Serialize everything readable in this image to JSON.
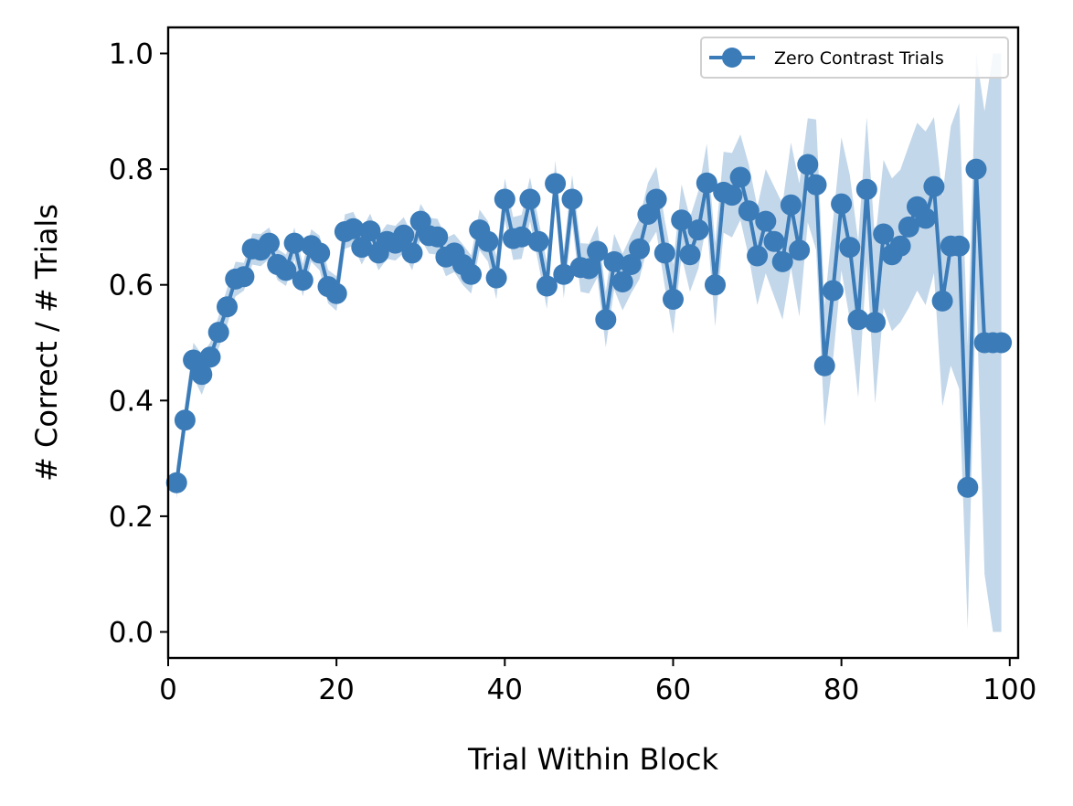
{
  "chart_data": {
    "type": "line",
    "xlabel": "Trial Within Block",
    "ylabel": "# Correct / # Trials",
    "xlim": [
      0,
      101
    ],
    "ylim": [
      -0.045,
      1.045
    ],
    "xticks": [
      0,
      20,
      40,
      60,
      80,
      100
    ],
    "xtick_labels": [
      "0",
      "20",
      "40",
      "60",
      "80",
      "100"
    ],
    "yticks": [
      0.0,
      0.2,
      0.4,
      0.6,
      0.8,
      1.0
    ],
    "ytick_labels": [
      "0.0",
      "0.2",
      "0.4",
      "0.6",
      "0.8",
      "1.0"
    ],
    "grid": false,
    "legend_position": "top-right",
    "colors": {
      "line": "#3a7bb8",
      "band": "#c3d7ea"
    },
    "series": [
      {
        "name": "Zero Contrast Trials",
        "marker": "circle",
        "x": [
          1,
          2,
          3,
          4,
          5,
          6,
          7,
          8,
          9,
          10,
          11,
          12,
          13,
          14,
          15,
          16,
          17,
          18,
          19,
          20,
          21,
          22,
          23,
          24,
          25,
          26,
          27,
          28,
          29,
          30,
          31,
          32,
          33,
          34,
          35,
          36,
          37,
          38,
          39,
          40,
          41,
          42,
          43,
          44,
          45,
          46,
          47,
          48,
          49,
          50,
          51,
          52,
          53,
          54,
          55,
          56,
          57,
          58,
          59,
          60,
          61,
          62,
          63,
          64,
          65,
          66,
          67,
          68,
          69,
          70,
          71,
          72,
          73,
          74,
          75,
          76,
          77,
          78,
          79,
          80,
          81,
          82,
          83,
          84,
          85,
          86,
          87,
          88,
          89,
          90,
          91,
          92,
          93,
          94,
          95,
          96,
          97,
          98,
          99
        ],
        "y": [
          0.258,
          0.366,
          0.47,
          0.445,
          0.475,
          0.518,
          0.562,
          0.61,
          0.614,
          0.662,
          0.66,
          0.672,
          0.635,
          0.625,
          0.672,
          0.608,
          0.668,
          0.655,
          0.597,
          0.585,
          0.692,
          0.697,
          0.665,
          0.693,
          0.655,
          0.675,
          0.672,
          0.686,
          0.655,
          0.71,
          0.685,
          0.683,
          0.648,
          0.655,
          0.635,
          0.618,
          0.695,
          0.675,
          0.612,
          0.748,
          0.68,
          0.683,
          0.748,
          0.675,
          0.598,
          0.775,
          0.618,
          0.748,
          0.63,
          0.628,
          0.658,
          0.54,
          0.64,
          0.605,
          0.635,
          0.662,
          0.722,
          0.748,
          0.655,
          0.575,
          0.712,
          0.652,
          0.695,
          0.776,
          0.6,
          0.76,
          0.755,
          0.786,
          0.728,
          0.65,
          0.71,
          0.675,
          0.64,
          0.738,
          0.66,
          0.808,
          0.773,
          0.46,
          0.59,
          0.74,
          0.665,
          0.54,
          0.765,
          0.535,
          0.688,
          0.652,
          0.667,
          0.7,
          0.735,
          0.715,
          0.77,
          0.572,
          0.667,
          0.667,
          0.25,
          0.8,
          0.5,
          0.5,
          0.5
        ],
        "ci_lower": [
          0.23,
          0.34,
          0.44,
          0.41,
          0.45,
          0.49,
          0.53,
          0.58,
          0.59,
          0.635,
          0.632,
          0.645,
          0.608,
          0.598,
          0.645,
          0.58,
          0.64,
          0.625,
          0.568,
          0.555,
          0.662,
          0.668,
          0.635,
          0.663,
          0.625,
          0.645,
          0.642,
          0.655,
          0.625,
          0.68,
          0.654,
          0.652,
          0.615,
          0.622,
          0.6,
          0.585,
          0.66,
          0.64,
          0.575,
          0.712,
          0.643,
          0.645,
          0.71,
          0.637,
          0.558,
          0.735,
          0.577,
          0.706,
          0.588,
          0.585,
          0.613,
          0.492,
          0.592,
          0.556,
          0.585,
          0.61,
          0.668,
          0.692,
          0.598,
          0.515,
          0.65,
          0.588,
          0.628,
          0.708,
          0.528,
          0.69,
          0.682,
          0.712,
          0.648,
          0.565,
          0.62,
          0.58,
          0.54,
          0.63,
          0.545,
          0.708,
          0.66,
          0.355,
          0.47,
          0.625,
          0.54,
          0.405,
          0.64,
          0.395,
          0.56,
          0.52,
          0.535,
          0.56,
          0.59,
          0.565,
          0.62,
          0.39,
          0.46,
          0.42,
          0.005,
          0.6,
          0.1,
          0.0,
          0.0
        ],
        "ci_upper": [
          0.286,
          0.392,
          0.5,
          0.48,
          0.5,
          0.546,
          0.594,
          0.64,
          0.638,
          0.689,
          0.688,
          0.699,
          0.662,
          0.652,
          0.699,
          0.636,
          0.696,
          0.685,
          0.626,
          0.615,
          0.722,
          0.726,
          0.695,
          0.723,
          0.685,
          0.705,
          0.702,
          0.717,
          0.685,
          0.74,
          0.716,
          0.714,
          0.681,
          0.688,
          0.67,
          0.651,
          0.73,
          0.71,
          0.649,
          0.784,
          0.717,
          0.721,
          0.786,
          0.713,
          0.638,
          0.815,
          0.659,
          0.79,
          0.672,
          0.671,
          0.703,
          0.588,
          0.688,
          0.654,
          0.685,
          0.714,
          0.776,
          0.804,
          0.712,
          0.635,
          0.774,
          0.716,
          0.762,
          0.844,
          0.672,
          0.83,
          0.828,
          0.86,
          0.808,
          0.735,
          0.8,
          0.77,
          0.74,
          0.846,
          0.775,
          0.888,
          0.886,
          0.565,
          0.71,
          0.855,
          0.79,
          0.675,
          0.89,
          0.675,
          0.816,
          0.784,
          0.799,
          0.84,
          0.88,
          0.865,
          0.89,
          0.754,
          0.874,
          0.914,
          0.495,
          1.0,
          0.9,
          1.0,
          1.0
        ]
      }
    ]
  }
}
